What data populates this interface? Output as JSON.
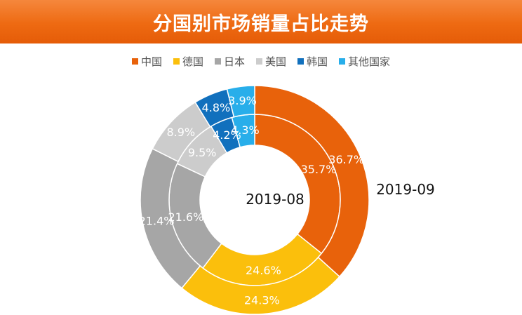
{
  "header": {
    "title": "分国别市场销量占比走势"
  },
  "chart_data": {
    "type": "donut",
    "title": "分国别市场销量占比走势",
    "categories": [
      "中国",
      "德国",
      "日本",
      "美国",
      "韩国",
      "其他国家"
    ],
    "colors": [
      "#e8620b",
      "#fbbf0c",
      "#a6a6a6",
      "#cccccc",
      "#1170bd",
      "#28aeea"
    ],
    "series": [
      {
        "name": "2019-08",
        "ring": "inner",
        "values": [
          35.7,
          24.6,
          21.6,
          9.5,
          4.2,
          4.3
        ],
        "labels": [
          "35.7%",
          "24.6%",
          "21.6%",
          "9.5%",
          "4.2%",
          "4.3%"
        ]
      },
      {
        "name": "2019-09",
        "ring": "outer",
        "values": [
          36.7,
          24.3,
          21.4,
          8.9,
          4.8,
          3.9
        ],
        "labels": [
          "36.7%",
          "24.3%",
          "21.4%",
          "8.9%",
          "4.8%",
          "3.9%"
        ]
      }
    ],
    "legend_position": "top"
  }
}
